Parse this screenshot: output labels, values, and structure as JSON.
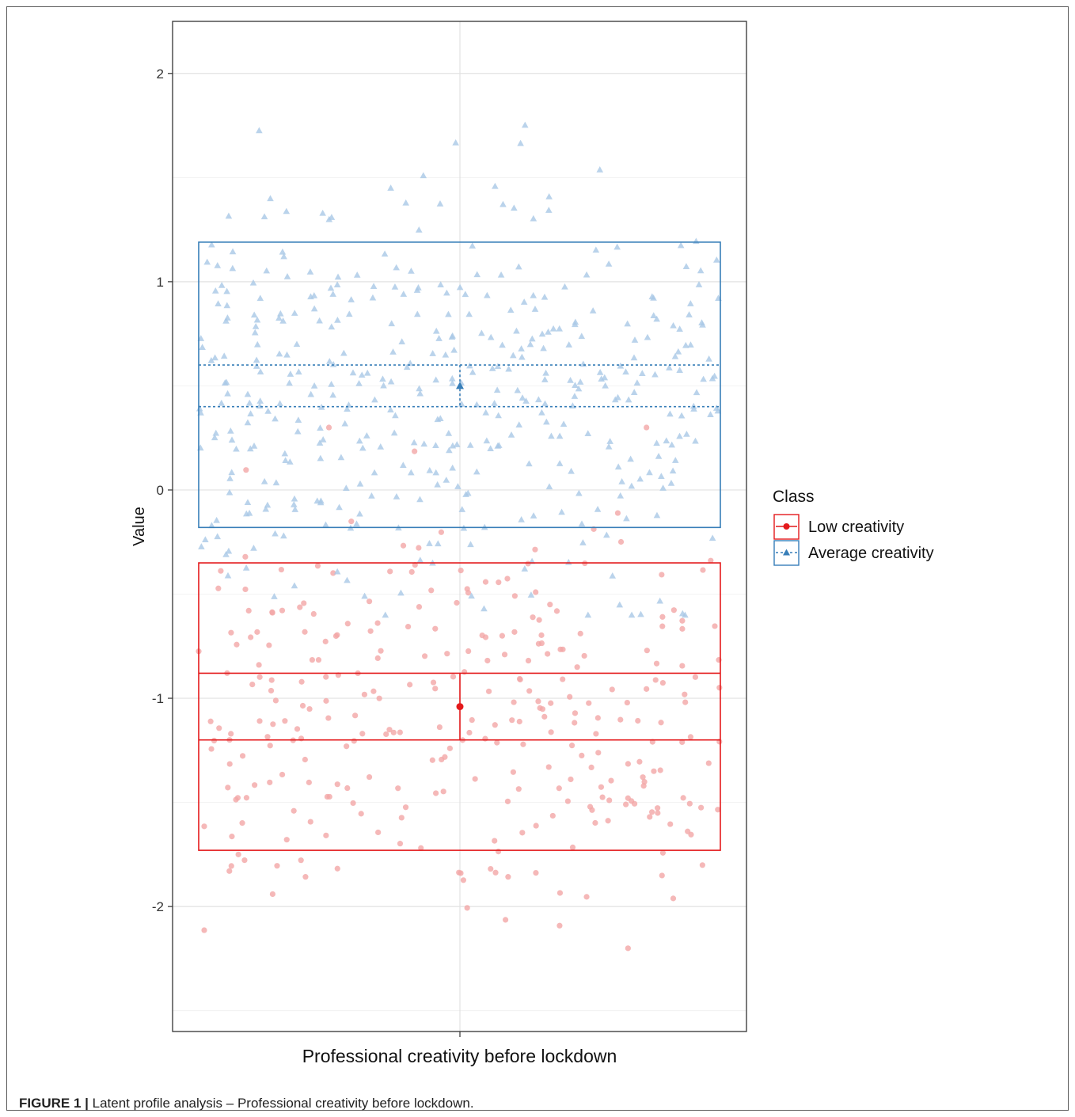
{
  "caption": {
    "label": "FIGURE 1 |",
    "text": "Latent profile analysis – Professional creativity before lockdown."
  },
  "colors": {
    "low": "#e41a1c",
    "average": "#377eb8",
    "low_points": "#f3a6a6",
    "average_points": "#a9c8e6"
  },
  "chart_data": {
    "type": "scatter",
    "title": "",
    "xlabel": "Professional creativity before lockdown",
    "ylabel": "Value",
    "ylim": [
      -2.6,
      2.25
    ],
    "yticks": [
      -2,
      -1,
      0,
      1,
      2
    ],
    "grid": true,
    "legend": {
      "title": "Class",
      "placement": "right",
      "entries": [
        "Low creativity",
        "Average creativity"
      ]
    },
    "series": [
      {
        "name": "Low creativity",
        "marker": "circle",
        "line": "solid",
        "mean": -1.04,
        "ci": [
          -1.2,
          -0.88
        ],
        "sd_range": [
          -1.73,
          -0.35
        ],
        "n_points": 300,
        "point_range": [
          -2.35,
          0.3
        ]
      },
      {
        "name": "Average creativity",
        "marker": "triangle",
        "line": "dotted",
        "mean": 0.5,
        "ci": [
          0.4,
          0.6
        ],
        "sd_range": [
          -0.18,
          1.19
        ],
        "n_points": 420,
        "point_range": [
          -0.6,
          2.03
        ]
      }
    ]
  }
}
